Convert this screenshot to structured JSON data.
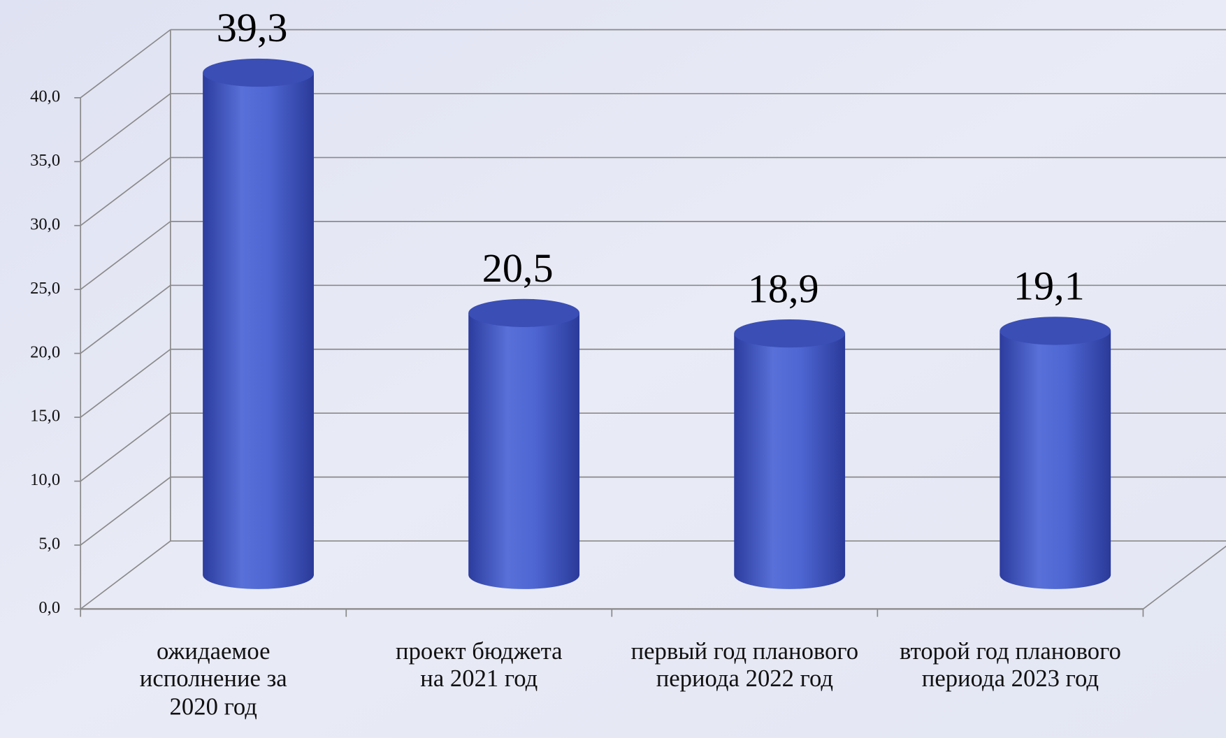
{
  "chart_data": {
    "type": "bar",
    "categories": [
      "ожидаемое исполнение за 2020 год",
      "проект бюджета на 2021 год",
      "первый год планового периода 2022 год",
      "второй год планового периода 2023 год"
    ],
    "values": [
      39.3,
      20.5,
      18.9,
      19.1
    ],
    "value_labels": [
      "39,3",
      "20,5",
      "18,9",
      "19,1"
    ],
    "color": "#4a63cf",
    "ylim": [
      0,
      40
    ],
    "yticks": [
      {
        "value": 0,
        "label": "0,0"
      },
      {
        "value": 5,
        "label": "5,0"
      },
      {
        "value": 10,
        "label": "10,0"
      },
      {
        "value": 15,
        "label": "15,0"
      },
      {
        "value": 20,
        "label": "20,0"
      },
      {
        "value": 25,
        "label": "25,0"
      },
      {
        "value": 30,
        "label": "30,0"
      },
      {
        "value": 35,
        "label": "35,0"
      },
      {
        "value": 40,
        "label": "40,0"
      }
    ],
    "grid": true
  }
}
